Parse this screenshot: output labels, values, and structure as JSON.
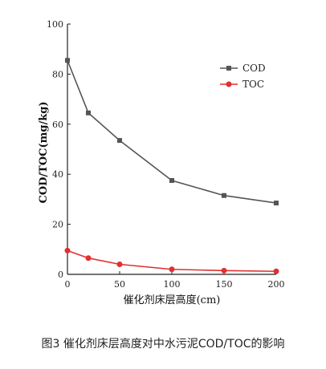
{
  "caption": "图3 催化剂床层高度对中水污泥COD/TOC的影响",
  "chart_data": {
    "type": "line",
    "x": [
      0,
      20,
      50,
      100,
      150,
      200
    ],
    "xlabel": "催化剂床层高度(cm)",
    "ylabel": "COD/TOC(mg/kg)",
    "xlim": [
      0,
      200
    ],
    "ylim": [
      0,
      100
    ],
    "x_ticks": [
      0,
      50,
      100,
      150,
      200
    ],
    "y_ticks": [
      0,
      20,
      40,
      60,
      80,
      100
    ],
    "grid": false,
    "legend_position": "top-right",
    "series": [
      {
        "name": "COD",
        "color": "#555555",
        "marker": "square",
        "values": [
          85.5,
          64.5,
          53.5,
          37.5,
          31.5,
          28.5
        ]
      },
      {
        "name": "TOC",
        "color": "#e03030",
        "marker": "circle",
        "values": [
          9.5,
          6.5,
          4.0,
          2.0,
          1.5,
          1.2
        ]
      }
    ]
  }
}
